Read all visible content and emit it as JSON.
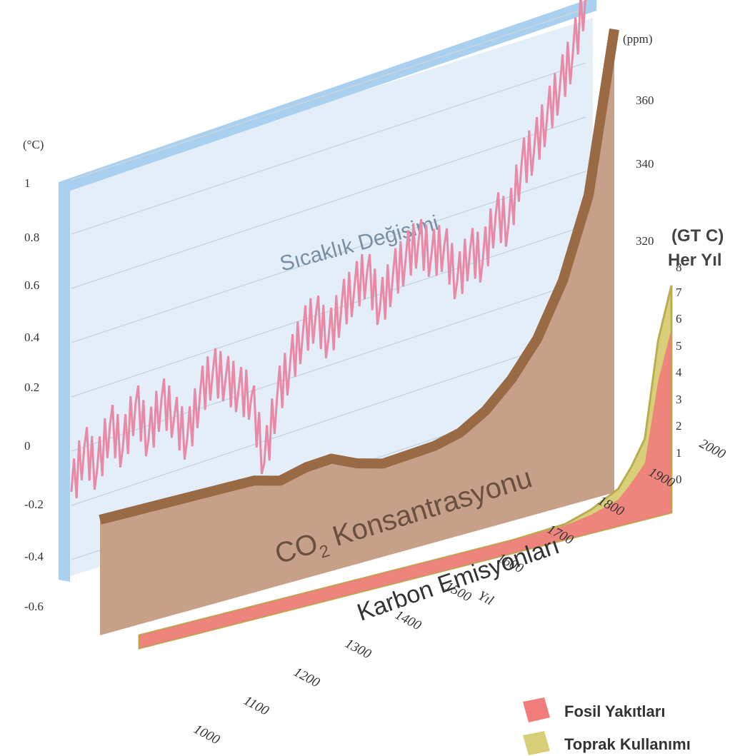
{
  "colors": {
    "temperature": "#e88aa6",
    "co2_fill": "#c6a088",
    "co2_top": "#9a6a44",
    "fossil": "#f07c7c",
    "land": "#d8cf78",
    "panel_bg": "#dfeaf6",
    "panel_frame": "#9cc8ec"
  },
  "chart_data": {
    "type": "area",
    "temperature_title": "Sıcaklık Değişimi",
    "co2_title_main": "CO",
    "co2_title_sub": "2",
    "co2_title_rest": " Konsantrasyonu",
    "emissions_title": "Karbon Emisyonları",
    "x_axis_label": "Yıl",
    "x_ticks": [
      "1000",
      "1100",
      "1200",
      "1300",
      "1400",
      "1500",
      "1600",
      "1700",
      "1800",
      "1900",
      "2000"
    ],
    "temperature_unit": "(°C)",
    "temperature_ticks": [
      "1",
      "0.8",
      "0.6",
      "0.4",
      "0.2",
      "0",
      "-0.2",
      "-0.4",
      "-0.6"
    ],
    "co2_unit": "(ppm)",
    "co2_ticks": [
      "360",
      "340",
      "320"
    ],
    "emissions_unit_line1": "(GT C)",
    "emissions_unit_line2": "Her Yıl",
    "emissions_ticks": [
      "8",
      "7",
      "6",
      "5",
      "4",
      "3",
      "2",
      "1",
      "0"
    ],
    "legend": [
      {
        "label": "Fosil Yakıtları",
        "color": "#f07c7c"
      },
      {
        "label": "Toprak Kullanımı",
        "color": "#d8cf78"
      }
    ],
    "co2_series": {
      "name": "CO2",
      "x": [
        1000,
        1100,
        1200,
        1300,
        1350,
        1400,
        1450,
        1500,
        1550,
        1600,
        1650,
        1700,
        1750,
        1800,
        1850,
        1900,
        1950,
        1975,
        2000
      ],
      "y": [
        280,
        281,
        282,
        283,
        282,
        284,
        285,
        283,
        282,
        283,
        284,
        286,
        290,
        296,
        304,
        316,
        334,
        352,
        370
      ]
    },
    "temperature_series": {
      "name": "Temperature",
      "x": [
        1000,
        1025,
        1050,
        1075,
        1100,
        1125,
        1150,
        1175,
        1200,
        1225,
        1250,
        1275,
        1300,
        1325,
        1350,
        1375,
        1400,
        1425,
        1450,
        1475,
        1500,
        1525,
        1550,
        1575,
        1600,
        1625,
        1650,
        1675,
        1700,
        1725,
        1750,
        1775,
        1800,
        1825,
        1850,
        1875,
        1900,
        1925,
        1950,
        1975,
        2000
      ],
      "y": [
        -0.15,
        0.0,
        -0.1,
        0.05,
        -0.05,
        0.1,
        -0.05,
        0.08,
        0.0,
        -0.1,
        0.05,
        0.12,
        0.08,
        0.02,
        -0.02,
        -0.28,
        -0.05,
        0.05,
        0.15,
        0.2,
        0.1,
        0.2,
        0.25,
        0.3,
        0.15,
        0.25,
        0.3,
        0.35,
        0.28,
        0.3,
        0.15,
        0.25,
        0.2,
        0.35,
        0.3,
        0.5,
        0.55,
        0.65,
        0.75,
        0.85,
        1.05
      ]
    },
    "fossil_series": {
      "name": "Fosil Yakıtları",
      "x": [
        1000,
        1700,
        1800,
        1850,
        1900,
        1925,
        1950,
        1975,
        2000
      ],
      "y": [
        0,
        0,
        0.05,
        0.2,
        0.5,
        1.0,
        1.6,
        4.5,
        6.3
      ]
    },
    "land_series": {
      "name": "Toprak Kullanımı",
      "x": [
        1000,
        1700,
        1800,
        1850,
        1900,
        1925,
        1950,
        1975,
        2000
      ],
      "y": [
        0,
        0,
        0.1,
        0.4,
        0.9,
        1.6,
        2.5,
        6.0,
        7.9
      ]
    }
  }
}
